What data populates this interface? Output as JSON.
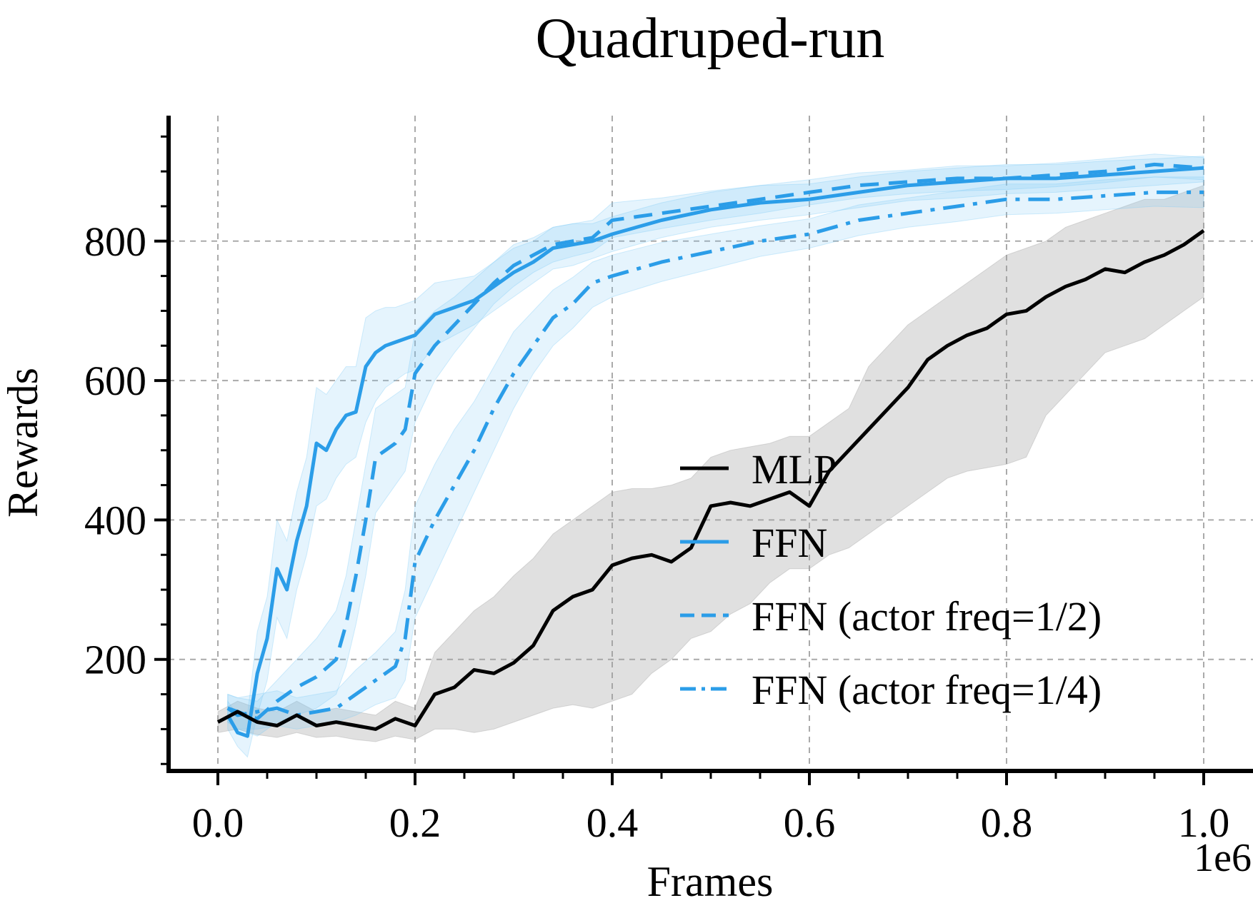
{
  "chart_data": {
    "type": "line",
    "title": "Quadruped-run",
    "xlabel": "Frames",
    "ylabel": "Rewards",
    "x_offset_text": "1e6",
    "xlim": [
      -0.05,
      1.05
    ],
    "ylim": [
      40,
      980
    ],
    "xticks": [
      0.0,
      0.2,
      0.4,
      0.6,
      0.8,
      1.0
    ],
    "xtick_labels": [
      "0.0",
      "0.2",
      "0.4",
      "0.6",
      "0.8",
      "1.0"
    ],
    "yticks": [
      200,
      400,
      600,
      800
    ],
    "ytick_labels": [
      "200",
      "400",
      "600",
      "800"
    ],
    "grid": true,
    "legend_position": "lower-right",
    "series": [
      {
        "name": "MLP",
        "color": "#000000",
        "dash": "solid",
        "band_color": "#9e9e9e",
        "x": [
          0.0,
          0.02,
          0.04,
          0.06,
          0.08,
          0.1,
          0.12,
          0.14,
          0.16,
          0.18,
          0.2,
          0.22,
          0.24,
          0.26,
          0.28,
          0.3,
          0.32,
          0.34,
          0.36,
          0.38,
          0.4,
          0.42,
          0.44,
          0.46,
          0.48,
          0.5,
          0.52,
          0.54,
          0.56,
          0.58,
          0.6,
          0.62,
          0.64,
          0.66,
          0.68,
          0.7,
          0.72,
          0.74,
          0.76,
          0.78,
          0.8,
          0.82,
          0.84,
          0.86,
          0.88,
          0.9,
          0.92,
          0.94,
          0.96,
          0.98,
          1.0
        ],
        "y": [
          110,
          125,
          110,
          105,
          120,
          105,
          110,
          105,
          100,
          115,
          105,
          150,
          160,
          185,
          180,
          195,
          220,
          270,
          290,
          300,
          335,
          345,
          350,
          340,
          360,
          420,
          425,
          420,
          430,
          440,
          420,
          470,
          500,
          530,
          560,
          590,
          630,
          650,
          665,
          675,
          695,
          700,
          720,
          735,
          745,
          760,
          755,
          770,
          780,
          795,
          815
        ],
        "lower": [
          95,
          100,
          92,
          88,
          95,
          88,
          90,
          85,
          82,
          90,
          85,
          100,
          100,
          95,
          100,
          110,
          120,
          130,
          135,
          130,
          140,
          150,
          180,
          200,
          230,
          240,
          265,
          280,
          310,
          330,
          330,
          350,
          360,
          380,
          400,
          420,
          440,
          460,
          470,
          475,
          480,
          490,
          550,
          580,
          610,
          640,
          650,
          660,
          680,
          700,
          720
        ],
        "upper": [
          125,
          140,
          130,
          125,
          140,
          125,
          130,
          125,
          120,
          140,
          130,
          210,
          240,
          270,
          290,
          320,
          345,
          380,
          400,
          420,
          440,
          445,
          445,
          450,
          460,
          490,
          500,
          505,
          510,
          520,
          520,
          540,
          560,
          620,
          650,
          680,
          700,
          720,
          740,
          760,
          780,
          790,
          800,
          820,
          830,
          840,
          850,
          860,
          860,
          870,
          880
        ]
      },
      {
        "name": "FFN",
        "color": "#2b9de8",
        "dash": "solid",
        "band_color": "#7fcaf5",
        "x": [
          0.01,
          0.02,
          0.03,
          0.04,
          0.05,
          0.06,
          0.07,
          0.08,
          0.09,
          0.1,
          0.11,
          0.12,
          0.13,
          0.14,
          0.15,
          0.16,
          0.17,
          0.18,
          0.19,
          0.2,
          0.22,
          0.24,
          0.26,
          0.28,
          0.3,
          0.32,
          0.34,
          0.36,
          0.38,
          0.4,
          0.45,
          0.5,
          0.55,
          0.6,
          0.65,
          0.7,
          0.75,
          0.8,
          0.85,
          0.9,
          0.95,
          1.0
        ],
        "y": [
          120,
          95,
          90,
          180,
          230,
          330,
          300,
          370,
          420,
          510,
          500,
          530,
          550,
          555,
          620,
          640,
          650,
          655,
          660,
          665,
          695,
          705,
          715,
          735,
          755,
          770,
          790,
          795,
          800,
          810,
          830,
          845,
          855,
          860,
          870,
          880,
          885,
          890,
          890,
          895,
          900,
          905
        ],
        "lower": [
          100,
          75,
          60,
          120,
          170,
          260,
          230,
          300,
          350,
          420,
          430,
          460,
          480,
          490,
          540,
          570,
          590,
          600,
          610,
          615,
          650,
          665,
          680,
          700,
          720,
          740,
          760,
          765,
          775,
          785,
          805,
          820,
          830,
          838,
          848,
          858,
          862,
          868,
          870,
          875,
          880,
          885
        ],
        "upper": [
          140,
          120,
          120,
          240,
          290,
          400,
          370,
          440,
          490,
          590,
          580,
          600,
          620,
          620,
          690,
          700,
          705,
          705,
          710,
          715,
          740,
          745,
          750,
          770,
          790,
          800,
          820,
          825,
          825,
          835,
          855,
          870,
          880,
          882,
          892,
          900,
          905,
          910,
          910,
          915,
          918,
          922
        ]
      },
      {
        "name": "FFN (actor freq=1/2)",
        "color": "#2b9de8",
        "dash": "dashed",
        "band_color": "#7fcaf5",
        "x": [
          0.01,
          0.02,
          0.04,
          0.06,
          0.08,
          0.1,
          0.12,
          0.13,
          0.14,
          0.15,
          0.16,
          0.17,
          0.18,
          0.19,
          0.2,
          0.22,
          0.24,
          0.26,
          0.28,
          0.3,
          0.32,
          0.34,
          0.36,
          0.38,
          0.4,
          0.45,
          0.5,
          0.55,
          0.6,
          0.65,
          0.7,
          0.75,
          0.8,
          0.85,
          0.9,
          0.95,
          1.0
        ],
        "y": [
          130,
          125,
          115,
          140,
          160,
          175,
          200,
          250,
          320,
          400,
          490,
          500,
          510,
          530,
          610,
          650,
          680,
          710,
          740,
          765,
          780,
          795,
          800,
          805,
          830,
          840,
          850,
          860,
          870,
          880,
          885,
          890,
          890,
          895,
          900,
          910,
          905
        ],
        "lower": [
          110,
          100,
          90,
          110,
          120,
          130,
          150,
          190,
          250,
          320,
          410,
          430,
          450,
          470,
          540,
          600,
          640,
          675,
          710,
          735,
          755,
          770,
          778,
          785,
          805,
          818,
          830,
          840,
          852,
          862,
          868,
          872,
          874,
          878,
          884,
          892,
          888
        ],
        "upper": [
          150,
          145,
          140,
          170,
          200,
          230,
          270,
          320,
          400,
          480,
          560,
          570,
          580,
          590,
          670,
          700,
          720,
          745,
          770,
          795,
          805,
          820,
          825,
          830,
          855,
          862,
          872,
          880,
          888,
          898,
          902,
          908,
          908,
          912,
          918,
          925,
          920
        ]
      },
      {
        "name": "FFN (actor freq=1/4)",
        "color": "#2b9de8",
        "dash": "dashdot",
        "band_color": "#7fcaf5",
        "x": [
          0.01,
          0.02,
          0.04,
          0.06,
          0.08,
          0.1,
          0.12,
          0.14,
          0.16,
          0.17,
          0.18,
          0.19,
          0.2,
          0.22,
          0.24,
          0.26,
          0.28,
          0.3,
          0.32,
          0.34,
          0.36,
          0.38,
          0.4,
          0.45,
          0.5,
          0.55,
          0.6,
          0.65,
          0.7,
          0.75,
          0.8,
          0.85,
          0.9,
          0.95,
          1.0
        ],
        "y": [
          130,
          120,
          125,
          130,
          120,
          125,
          130,
          150,
          170,
          180,
          190,
          230,
          340,
          400,
          450,
          500,
          560,
          610,
          650,
          690,
          710,
          740,
          750,
          770,
          785,
          800,
          810,
          830,
          840,
          850,
          860,
          860,
          865,
          870,
          870
        ],
        "lower": [
          110,
          100,
          100,
          105,
          100,
          105,
          110,
          120,
          135,
          140,
          145,
          170,
          260,
          320,
          380,
          440,
          500,
          560,
          610,
          650,
          675,
          705,
          720,
          742,
          760,
          778,
          790,
          808,
          820,
          828,
          838,
          840,
          845,
          850,
          848
        ],
        "upper": [
          150,
          145,
          150,
          155,
          145,
          150,
          155,
          185,
          210,
          225,
          240,
          300,
          420,
          480,
          530,
          570,
          620,
          670,
          700,
          730,
          748,
          770,
          780,
          798,
          810,
          822,
          832,
          852,
          862,
          872,
          882,
          882,
          888,
          892,
          892
        ]
      }
    ]
  }
}
